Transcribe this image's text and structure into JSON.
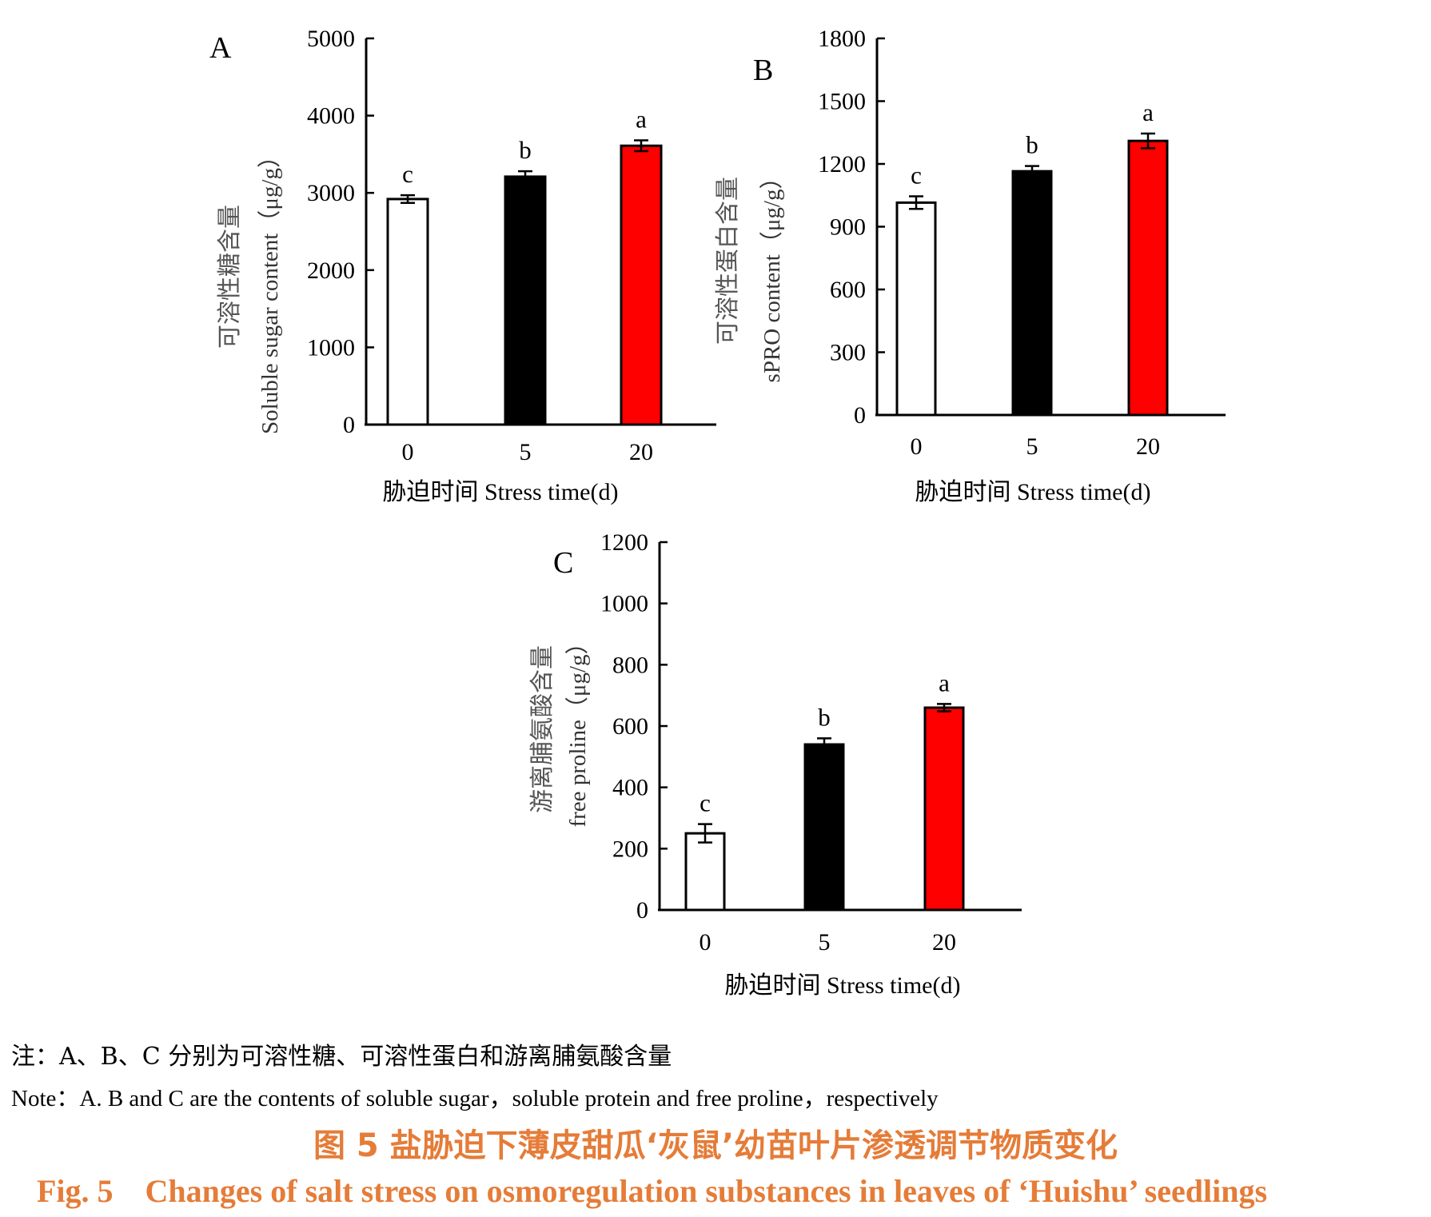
{
  "chart_data": [
    {
      "type": "bar",
      "panel": "A",
      "categories": [
        "0",
        "5",
        "20"
      ],
      "values": [
        2920,
        3210,
        3610
      ],
      "errors": [
        50,
        70,
        70
      ],
      "letters": [
        "c",
        "b",
        "a"
      ],
      "bar_colors": [
        "#ffffff",
        "#000000",
        "#ff0000"
      ],
      "ylim": [
        0,
        5000
      ],
      "yticks": [
        "0",
        "1000",
        "2000",
        "3000",
        "4000",
        "5000"
      ],
      "ylabel_zh": "可溶性糖含量",
      "ylabel_en": "Soluble sugar content（μg/g）",
      "xlabel": "胁迫时间  Stress time(d)"
    },
    {
      "type": "bar",
      "panel": "B",
      "categories": [
        "0",
        "5",
        "20"
      ],
      "values": [
        1015,
        1165,
        1310
      ],
      "errors": [
        30,
        25,
        35
      ],
      "letters": [
        "c",
        "b",
        "a"
      ],
      "bar_colors": [
        "#ffffff",
        "#000000",
        "#ff0000"
      ],
      "ylim": [
        0,
        1800
      ],
      "yticks": [
        "0",
        "300",
        "600",
        "900",
        "1200",
        "1500",
        "1800"
      ],
      "ylabel_zh": "可溶性蛋白含量",
      "ylabel_en": "sPRO content（μg/g）",
      "xlabel": "胁迫时间  Stress time(d)"
    },
    {
      "type": "bar",
      "panel": "C",
      "categories": [
        "0",
        "5",
        "20"
      ],
      "values": [
        250,
        540,
        660
      ],
      "errors": [
        30,
        20,
        12
      ],
      "letters": [
        "c",
        "b",
        "a"
      ],
      "bar_colors": [
        "#ffffff",
        "#000000",
        "#ff0000"
      ],
      "ylim": [
        0,
        1200
      ],
      "yticks": [
        "0",
        "200",
        "400",
        "600",
        "800",
        "1000",
        "1200"
      ],
      "ylabel_zh": "游离脯氨酸含量",
      "ylabel_en": "free proline（μg/g）",
      "xlabel": "胁迫时间  Stress time(d)"
    }
  ],
  "caption": {
    "note_zh": "注：A、B、C 分别为可溶性糖、可溶性蛋白和游离脯氨酸含量",
    "note_en": "Note：A.  B and C are the contents of soluble sugar，soluble protein and free proline，respectively",
    "title_zh": "图 5    盐胁迫下薄皮甜瓜‘灰鼠’幼苗叶片渗透调节物质变化",
    "title_en": "Fig. 5    Changes of salt stress on osmoregulation substances in leaves of ‘Huishu’ seedlings",
    "title_color": "#e57c38"
  }
}
